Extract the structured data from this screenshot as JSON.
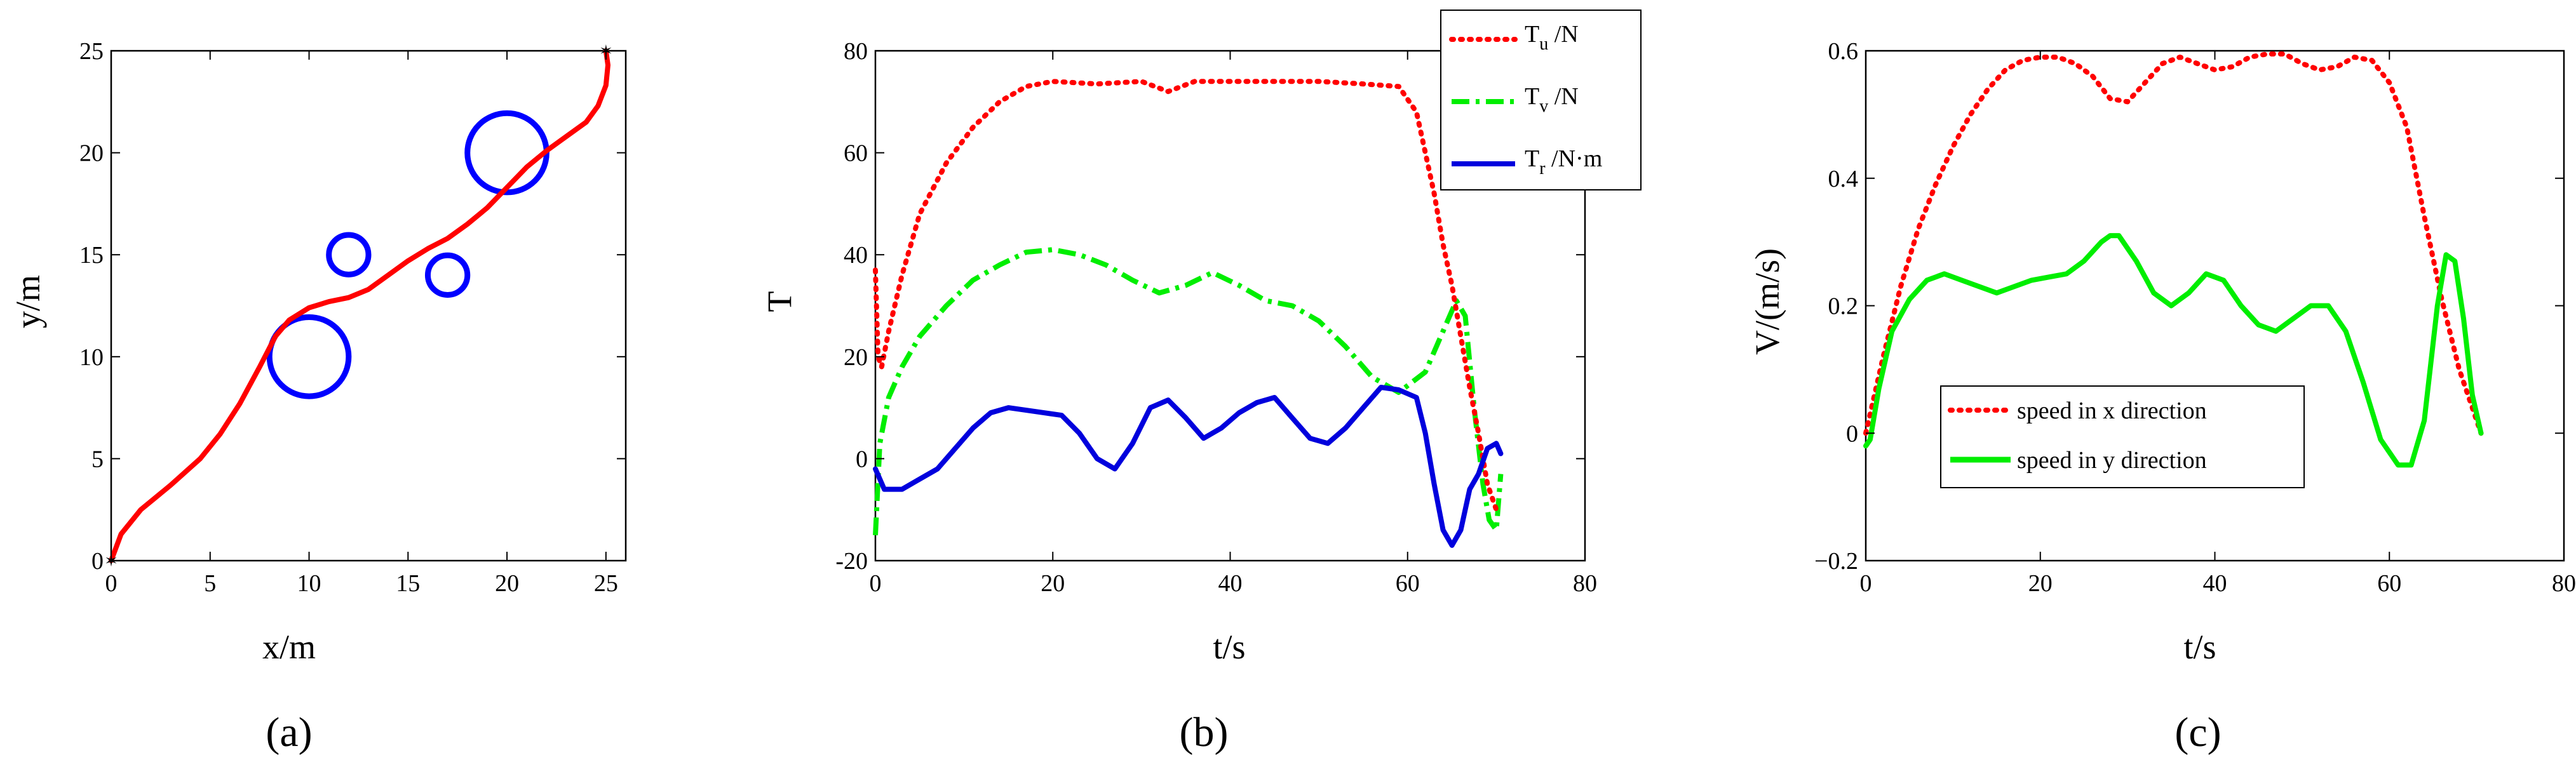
{
  "panel_labels": [
    "(a)",
    "(b)",
    "(c)"
  ],
  "chart_data": [
    {
      "type": "line",
      "title": "",
      "xlabel": "x/m",
      "ylabel": "y/m",
      "xlim": [
        0,
        26
      ],
      "ylim": [
        0,
        25
      ],
      "xticks": [
        0,
        5,
        10,
        15,
        20,
        25
      ],
      "yticks": [
        0,
        5,
        10,
        15,
        20,
        25
      ],
      "start_marker": [
        0,
        0
      ],
      "end_marker": [
        25,
        25
      ],
      "path_color": "#ff0000",
      "obstacle_color": "#0000ff",
      "path": {
        "x": [
          0,
          0.5,
          1.5,
          3,
          4.5,
          5.5,
          6.5,
          7.5,
          8.3,
          9,
          10,
          11,
          12,
          13,
          14,
          15,
          16,
          17,
          18,
          19,
          20,
          21,
          22,
          23,
          24,
          24.6,
          25,
          25.1,
          25
        ],
        "y": [
          0,
          1.3,
          2.5,
          3.7,
          5,
          6.2,
          7.7,
          9.5,
          11,
          11.8,
          12.4,
          12.7,
          12.9,
          13.3,
          14,
          14.7,
          15.3,
          15.8,
          16.5,
          17.3,
          18.3,
          19.3,
          20.1,
          20.8,
          21.5,
          22.3,
          23.3,
          24.3,
          25
        ]
      },
      "obstacles": [
        {
          "cx": 10,
          "cy": 10,
          "r": 2
        },
        {
          "cx": 12,
          "cy": 15,
          "r": 1
        },
        {
          "cx": 17,
          "cy": 14,
          "r": 1
        },
        {
          "cx": 20,
          "cy": 20,
          "r": 2
        }
      ]
    },
    {
      "type": "line",
      "title": "",
      "xlabel": "t/s",
      "ylabel": "T",
      "xlim": [
        0,
        80
      ],
      "ylim": [
        -20,
        80
      ],
      "xticks": [
        0,
        20,
        40,
        60,
        80
      ],
      "yticks": [
        -20,
        0,
        20,
        40,
        60,
        80
      ],
      "legend_position": "top-right",
      "series": [
        {
          "name": "T_u /N",
          "legend_main": "T",
          "legend_sub": "u",
          "legend_unit": " /N",
          "color": "#ff0000",
          "style": "dotted",
          "x": [
            0,
            0.3,
            0.7,
            1.5,
            3,
            5,
            8,
            11,
            14,
            17,
            20,
            25,
            30,
            33,
            36,
            40,
            45,
            50,
            55,
            59,
            61,
            62,
            63,
            64,
            65,
            66,
            67,
            68,
            69,
            70
          ],
          "y": [
            37,
            20,
            18,
            25,
            36,
            48,
            58,
            65,
            70,
            73,
            74,
            73.5,
            74,
            72,
            74,
            74,
            74,
            74,
            73.5,
            73,
            68,
            60,
            52,
            42,
            34,
            24,
            14,
            5,
            -5,
            -10
          ]
        },
        {
          "name": "T_v /N",
          "legend_main": "T",
          "legend_sub": "v",
          "legend_unit": " /N",
          "color": "#00ee00",
          "style": "dashdot",
          "x": [
            0,
            0.5,
            1.5,
            3,
            5,
            8,
            11,
            14,
            17,
            20,
            23,
            26,
            29,
            32,
            35,
            38,
            41,
            44,
            47,
            50,
            53,
            56,
            59,
            62,
            64,
            65.5,
            66.5,
            67.5,
            68.5,
            69.2,
            70,
            70.5
          ],
          "y": [
            -15,
            3,
            12,
            18,
            24,
            30,
            35,
            38,
            40.5,
            41,
            40,
            38,
            35,
            32.5,
            34,
            36.5,
            34,
            31,
            30,
            27,
            22,
            16,
            13,
            17,
            25,
            31,
            28,
            10,
            -5,
            -12,
            -14,
            -3
          ]
        },
        {
          "name": "T_r /N·m",
          "legend_main": "T",
          "legend_sub": "r",
          "legend_unit": " /N·m",
          "color": "#0000dd",
          "style": "solid",
          "x": [
            0,
            1,
            3,
            5,
            7,
            9,
            11,
            13,
            15,
            17,
            19,
            21,
            23,
            25,
            27,
            29,
            31,
            33,
            35,
            37,
            39,
            41,
            43,
            45,
            47,
            49,
            51,
            53,
            55,
            57,
            59,
            61,
            62,
            63,
            64,
            65,
            66,
            67,
            68,
            69,
            70,
            70.5
          ],
          "y": [
            -2,
            -6,
            -6,
            -4,
            -2,
            2,
            6,
            9,
            10,
            9.5,
            9,
            8.5,
            5,
            0,
            -2,
            3,
            10,
            11.5,
            8,
            4,
            6,
            9,
            11,
            12,
            8,
            4,
            3,
            6,
            10,
            14,
            13.5,
            12,
            5,
            -5,
            -14,
            -17,
            -14,
            -6,
            -3,
            2,
            3,
            1
          ]
        }
      ]
    },
    {
      "type": "line",
      "title": "",
      "xlabel": "t/s",
      "ylabel": "V/(m/s)",
      "xlim": [
        0,
        80
      ],
      "ylim": [
        -0.2,
        0.6
      ],
      "xticks": [
        0,
        20,
        40,
        60,
        80
      ],
      "yticks": [
        -0.2,
        0,
        0.2,
        0.4,
        0.6
      ],
      "ytick_labels": [
        "−0.2",
        "0",
        "0.2",
        "0.4",
        "0.6"
      ],
      "legend_position": "lower-left",
      "series": [
        {
          "name": "speed in x direction",
          "color": "#ff0000",
          "style": "dotted",
          "x": [
            0,
            2,
            4,
            6,
            8,
            10,
            12,
            14,
            16,
            18,
            20,
            22,
            24,
            26,
            28,
            30,
            32,
            34,
            36,
            38,
            40,
            42,
            44,
            46,
            48,
            50,
            52,
            54,
            56,
            58,
            60,
            62,
            64,
            66,
            68,
            70.5
          ],
          "y": [
            0,
            0.12,
            0.23,
            0.32,
            0.39,
            0.45,
            0.5,
            0.54,
            0.57,
            0.585,
            0.59,
            0.59,
            0.58,
            0.56,
            0.525,
            0.52,
            0.55,
            0.58,
            0.59,
            0.58,
            0.57,
            0.575,
            0.59,
            0.595,
            0.595,
            0.58,
            0.57,
            0.575,
            0.59,
            0.585,
            0.55,
            0.48,
            0.34,
            0.21,
            0.1,
            0
          ]
        },
        {
          "name": "speed in y direction",
          "color": "#00ee00",
          "style": "solid",
          "x": [
            0,
            0.5,
            1.5,
            3,
            5,
            7,
            9,
            11,
            13,
            15,
            17,
            19,
            21,
            23,
            25,
            27,
            28,
            29,
            31,
            33,
            35,
            37,
            39,
            41,
            43,
            45,
            47,
            49,
            51,
            53,
            55,
            57,
            59,
            61,
            62.5,
            64,
            65.5,
            66.5,
            67.5,
            68.5,
            69.5,
            70.5
          ],
          "y": [
            -0.02,
            -0.01,
            0.07,
            0.16,
            0.21,
            0.24,
            0.25,
            0.24,
            0.23,
            0.22,
            0.23,
            0.24,
            0.245,
            0.25,
            0.27,
            0.3,
            0.31,
            0.31,
            0.27,
            0.22,
            0.2,
            0.22,
            0.25,
            0.24,
            0.2,
            0.17,
            0.16,
            0.18,
            0.2,
            0.2,
            0.16,
            0.08,
            -0.01,
            -0.05,
            -0.05,
            0.02,
            0.2,
            0.28,
            0.27,
            0.18,
            0.06,
            0
          ]
        }
      ]
    }
  ]
}
